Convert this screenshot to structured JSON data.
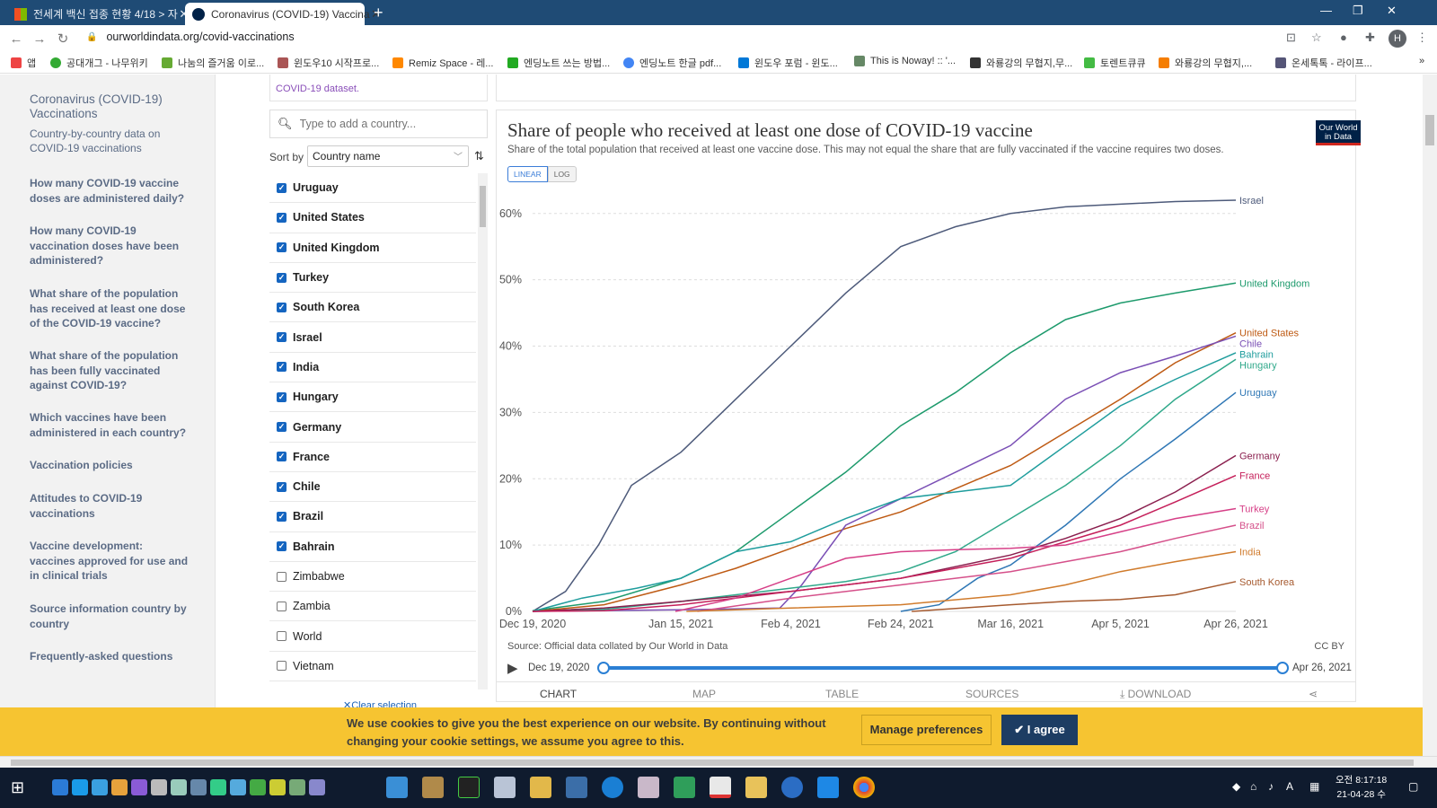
{
  "browser": {
    "tabs": [
      {
        "title": "전세계 백신 접종 현황 4/18 > 자",
        "active": false
      },
      {
        "title": "Coronavirus (COVID-19) Vaccina",
        "active": true
      }
    ],
    "new_tab": "+",
    "url": "ourworldindata.org/covid-vaccinations",
    "profile_initial": "H",
    "bookmarks": [
      "앱",
      "공대개그 - 나무위키",
      "나눔의 즐거움 이로...",
      "윈도우10 시작프로...",
      "Remiz Space - 레...",
      "엔딩노트 쓰는 방법...",
      "엔딩노트 한글 pdf...",
      "윈도우 포럼 - 윈도...",
      "This is Noway! :: '...",
      "와룡강의 무협지,무...",
      "토렌트큐큐",
      "와룡강의 무협지,...",
      "온세톡톡 - 라이프..."
    ]
  },
  "sidebar": {
    "title": "Coronavirus (COVID-19) Vaccinations",
    "subtitle": "Country-by-country data on COVID-19 vaccinations",
    "items": [
      "How many COVID-19 vaccine doses are administered daily?",
      "How many COVID-19 vaccination doses have been administered?",
      "What share of the population has received at least one dose of the COVID-19 vaccine?",
      "What share of the population has been fully vaccinated against COVID-19?",
      "Which vaccines have been administered in each country?",
      "Vaccination policies",
      "Attitudes to COVID-19 vaccinations",
      "Vaccine development: vaccines approved for use and in clinical trials",
      "Source information country by country",
      "Frequently-asked questions"
    ]
  },
  "country_panel": {
    "dataset_link": "COVID-19 dataset.",
    "search_placeholder": "Type to add a country...",
    "sort_label": "Sort by",
    "sort_value": "Country name",
    "countries": [
      {
        "name": "Uruguay",
        "checked": true
      },
      {
        "name": "United States",
        "checked": true
      },
      {
        "name": "United Kingdom",
        "checked": true
      },
      {
        "name": "Turkey",
        "checked": true
      },
      {
        "name": "South Korea",
        "checked": true
      },
      {
        "name": "Israel",
        "checked": true
      },
      {
        "name": "India",
        "checked": true
      },
      {
        "name": "Hungary",
        "checked": true
      },
      {
        "name": "Germany",
        "checked": true
      },
      {
        "name": "France",
        "checked": true
      },
      {
        "name": "Chile",
        "checked": true
      },
      {
        "name": "Brazil",
        "checked": true
      },
      {
        "name": "Bahrain",
        "checked": true
      },
      {
        "name": "Zimbabwe",
        "checked": false
      },
      {
        "name": "Zambia",
        "checked": false
      },
      {
        "name": "World",
        "checked": false
      },
      {
        "name": "Vietnam",
        "checked": false
      }
    ],
    "clear_selection": "Clear selection"
  },
  "chart": {
    "title": "Share of people who received at least one dose of COVID-19 vaccine",
    "subtitle": "Share of the total population that received at least one vaccine dose. This may not equal the share that are fully vaccinated if the vaccine requires two doses.",
    "logo": "Our World in Data",
    "scale_linear": "LINEAR",
    "scale_log": "LOG",
    "source": "Source: Official data collated by Our World in Data",
    "license": "CC BY",
    "timeline_start": "Dec 19, 2020",
    "timeline_end": "Apr 26, 2021",
    "tabs": [
      "Chart",
      "Map",
      "Table",
      "Sources",
      "Download"
    ],
    "colors": {
      "accent": "#2a7fd4",
      "brand": "#002147"
    }
  },
  "chart_data": {
    "type": "line",
    "title": "Share of people who received at least one dose of COVID-19 vaccine",
    "y_unit": "%",
    "ylim": [
      0,
      62
    ],
    "yticks": [
      "0%",
      "10%",
      "20%",
      "30%",
      "40%",
      "50%",
      "60%"
    ],
    "ytick_values": [
      0,
      10,
      20,
      30,
      40,
      50,
      60
    ],
    "x_range": [
      "2020-12-19",
      "2021-04-26"
    ],
    "xticks": [
      "Dec 19, 2020",
      "Jan 15, 2021",
      "Feb 4, 2021",
      "Feb 24, 2021",
      "Mar 16, 2021",
      "Apr 5, 2021",
      "Apr 26, 2021"
    ],
    "xtick_dates": [
      "2020-12-19",
      "2021-01-15",
      "2021-02-04",
      "2021-02-24",
      "2021-03-16",
      "2021-04-05",
      "2021-04-26"
    ],
    "grid": true,
    "legend": "end-of-line labels",
    "series": [
      {
        "name": "Israel",
        "color": "#4d5a7a",
        "points": [
          [
            "2020-12-19",
            0
          ],
          [
            "2020-12-25",
            3
          ],
          [
            "2020-12-31",
            10
          ],
          [
            "2021-01-06",
            19
          ],
          [
            "2021-01-15",
            24
          ],
          [
            "2021-01-25",
            32
          ],
          [
            "2021-02-04",
            40
          ],
          [
            "2021-02-14",
            48
          ],
          [
            "2021-02-24",
            55
          ],
          [
            "2021-03-06",
            58
          ],
          [
            "2021-03-16",
            60
          ],
          [
            "2021-03-26",
            61
          ],
          [
            "2021-04-05",
            61.4
          ],
          [
            "2021-04-15",
            61.8
          ],
          [
            "2021-04-26",
            62
          ]
        ]
      },
      {
        "name": "United Kingdom",
        "color": "#1d9a6c",
        "points": [
          [
            "2020-12-19",
            0.1
          ],
          [
            "2021-01-01",
            1.5
          ],
          [
            "2021-01-15",
            5
          ],
          [
            "2021-01-25",
            9
          ],
          [
            "2021-02-04",
            15
          ],
          [
            "2021-02-14",
            21
          ],
          [
            "2021-02-24",
            28
          ],
          [
            "2021-03-06",
            33
          ],
          [
            "2021-03-16",
            39
          ],
          [
            "2021-03-26",
            44
          ],
          [
            "2021-04-05",
            46.5
          ],
          [
            "2021-04-15",
            48
          ],
          [
            "2021-04-26",
            49.5
          ]
        ]
      },
      {
        "name": "United States",
        "color": "#be5a13",
        "points": [
          [
            "2020-12-19",
            0
          ],
          [
            "2021-01-01",
            1
          ],
          [
            "2021-01-15",
            4
          ],
          [
            "2021-01-25",
            6.5
          ],
          [
            "2021-02-04",
            9.5
          ],
          [
            "2021-02-14",
            12.5
          ],
          [
            "2021-02-24",
            15
          ],
          [
            "2021-03-06",
            18.5
          ],
          [
            "2021-03-16",
            22
          ],
          [
            "2021-03-26",
            27
          ],
          [
            "2021-04-05",
            32
          ],
          [
            "2021-04-15",
            37.5
          ],
          [
            "2021-04-26",
            42
          ]
        ]
      },
      {
        "name": "Chile",
        "color": "#7a4fb5",
        "points": [
          [
            "2020-12-19",
            0
          ],
          [
            "2021-01-20",
            0.3
          ],
          [
            "2021-02-02",
            0.5
          ],
          [
            "2021-02-06",
            4
          ],
          [
            "2021-02-14",
            13
          ],
          [
            "2021-02-24",
            17
          ],
          [
            "2021-03-06",
            21
          ],
          [
            "2021-03-16",
            25
          ],
          [
            "2021-03-26",
            32
          ],
          [
            "2021-04-05",
            36
          ],
          [
            "2021-04-15",
            38.5
          ],
          [
            "2021-04-26",
            41.5
          ]
        ]
      },
      {
        "name": "Bahrain",
        "color": "#1f9d9d",
        "points": [
          [
            "2020-12-19",
            0
          ],
          [
            "2020-12-28",
            2
          ],
          [
            "2021-01-07",
            3.5
          ],
          [
            "2021-01-15",
            5
          ],
          [
            "2021-01-25",
            9
          ],
          [
            "2021-02-04",
            10.5
          ],
          [
            "2021-02-14",
            14
          ],
          [
            "2021-02-24",
            17
          ],
          [
            "2021-03-06",
            18
          ],
          [
            "2021-03-16",
            19
          ],
          [
            "2021-03-26",
            25
          ],
          [
            "2021-04-05",
            31
          ],
          [
            "2021-04-15",
            35
          ],
          [
            "2021-04-26",
            39
          ]
        ]
      },
      {
        "name": "Hungary",
        "color": "#2fa88a",
        "points": [
          [
            "2020-12-19",
            0
          ],
          [
            "2021-01-01",
            0.3
          ],
          [
            "2021-01-15",
            1.5
          ],
          [
            "2021-01-25",
            2.5
          ],
          [
            "2021-02-04",
            3.5
          ],
          [
            "2021-02-14",
            4.5
          ],
          [
            "2021-02-24",
            6
          ],
          [
            "2021-03-06",
            9
          ],
          [
            "2021-03-16",
            14
          ],
          [
            "2021-03-26",
            19
          ],
          [
            "2021-04-05",
            25
          ],
          [
            "2021-04-15",
            32
          ],
          [
            "2021-04-26",
            38
          ]
        ]
      },
      {
        "name": "Uruguay",
        "color": "#2f77b5",
        "points": [
          [
            "2021-02-24",
            0
          ],
          [
            "2021-03-03",
            1
          ],
          [
            "2021-03-10",
            5
          ],
          [
            "2021-03-16",
            7
          ],
          [
            "2021-03-26",
            13
          ],
          [
            "2021-04-05",
            20
          ],
          [
            "2021-04-15",
            26
          ],
          [
            "2021-04-26",
            33
          ]
        ]
      },
      {
        "name": "Germany",
        "color": "#8a1f4e",
        "points": [
          [
            "2020-12-19",
            0
          ],
          [
            "2021-01-01",
            0.5
          ],
          [
            "2021-01-15",
            1.5
          ],
          [
            "2021-02-04",
            3
          ],
          [
            "2021-02-24",
            5
          ],
          [
            "2021-03-16",
            8.5
          ],
          [
            "2021-03-26",
            11
          ],
          [
            "2021-04-05",
            14
          ],
          [
            "2021-04-15",
            18
          ],
          [
            "2021-04-26",
            23.5
          ]
        ]
      },
      {
        "name": "France",
        "color": "#c51f5a",
        "points": [
          [
            "2020-12-19",
            0
          ],
          [
            "2021-01-01",
            0.1
          ],
          [
            "2021-01-15",
            1
          ],
          [
            "2021-02-04",
            3
          ],
          [
            "2021-02-24",
            5
          ],
          [
            "2021-03-16",
            8
          ],
          [
            "2021-03-26",
            10.5
          ],
          [
            "2021-04-05",
            13
          ],
          [
            "2021-04-15",
            16.5
          ],
          [
            "2021-04-26",
            20.5
          ]
        ]
      },
      {
        "name": "Turkey",
        "color": "#d63f87",
        "points": [
          [
            "2021-01-14",
            0
          ],
          [
            "2021-01-25",
            2
          ],
          [
            "2021-02-04",
            5
          ],
          [
            "2021-02-14",
            8
          ],
          [
            "2021-02-24",
            9
          ],
          [
            "2021-03-06",
            9.3
          ],
          [
            "2021-03-16",
            9.5
          ],
          [
            "2021-03-26",
            10
          ],
          [
            "2021-04-05",
            12
          ],
          [
            "2021-04-15",
            14
          ],
          [
            "2021-04-26",
            15.5
          ]
        ]
      },
      {
        "name": "Brazil",
        "color": "#d5508a",
        "points": [
          [
            "2021-01-18",
            0
          ],
          [
            "2021-02-04",
            2
          ],
          [
            "2021-02-24",
            4
          ],
          [
            "2021-03-16",
            6
          ],
          [
            "2021-03-26",
            7.5
          ],
          [
            "2021-04-05",
            9
          ],
          [
            "2021-04-15",
            11
          ],
          [
            "2021-04-26",
            13
          ]
        ]
      },
      {
        "name": "India",
        "color": "#d07b2c",
        "points": [
          [
            "2021-01-16",
            0
          ],
          [
            "2021-02-04",
            0.5
          ],
          [
            "2021-02-24",
            1
          ],
          [
            "2021-03-16",
            2.5
          ],
          [
            "2021-03-26",
            4
          ],
          [
            "2021-04-05",
            6
          ],
          [
            "2021-04-15",
            7.5
          ],
          [
            "2021-04-26",
            9
          ]
        ]
      },
      {
        "name": "South Korea",
        "color": "#a65a2f",
        "points": [
          [
            "2021-02-26",
            0
          ],
          [
            "2021-03-16",
            1
          ],
          [
            "2021-03-26",
            1.5
          ],
          [
            "2021-04-05",
            1.8
          ],
          [
            "2021-04-15",
            2.5
          ],
          [
            "2021-04-26",
            4.5
          ]
        ]
      }
    ]
  },
  "cookie": {
    "message": "We use cookies to give you the best experience on our website. By continuing without changing your cookie settings, we assume you agree to this.",
    "manage": "Manage preferences",
    "agree": "I agree"
  },
  "taskbar": {
    "time": "오전 8:17:18",
    "date": "21-04-28 수",
    "ime": "A"
  }
}
